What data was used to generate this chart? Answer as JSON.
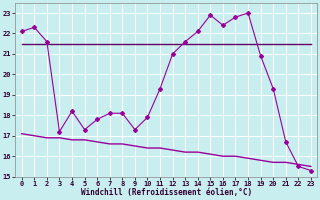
{
  "xlabel": "Windchill (Refroidissement éolien,°C)",
  "background_color": "#c8eef0",
  "line_color": "#990099",
  "line_color2": "#660066",
  "grid_color": "#ffffff",
  "ylim": [
    15,
    23.5
  ],
  "xlim": [
    -0.5,
    23.5
  ],
  "yticks": [
    15,
    16,
    17,
    18,
    19,
    20,
    21,
    22,
    23
  ],
  "xticks": [
    0,
    1,
    2,
    3,
    4,
    5,
    6,
    7,
    8,
    9,
    10,
    11,
    12,
    13,
    14,
    15,
    16,
    17,
    18,
    19,
    20,
    21,
    22,
    23
  ],
  "zigzag_x": [
    0,
    1,
    2,
    3,
    4,
    5,
    6,
    7,
    8,
    9,
    10,
    11,
    12,
    13,
    14,
    15,
    16,
    17,
    18,
    19,
    20,
    21,
    22,
    23
  ],
  "zigzag_y": [
    22.1,
    22.3,
    21.6,
    17.2,
    18.2,
    17.3,
    17.8,
    18.1,
    18.1,
    17.3,
    17.9,
    19.3,
    21.0,
    21.6,
    22.1,
    22.9,
    22.4,
    22.8,
    23.0,
    20.9,
    19.3,
    16.7,
    15.5,
    15.3
  ],
  "upper_flat_x": [
    0,
    1,
    2,
    3,
    4,
    5,
    6,
    7,
    8,
    9,
    10,
    11,
    12,
    13,
    14,
    15,
    16,
    17,
    18,
    19,
    20,
    21,
    22,
    23
  ],
  "upper_flat_y": [
    21.5,
    21.5,
    21.5,
    21.5,
    21.5,
    21.5,
    21.5,
    21.5,
    21.5,
    21.5,
    21.5,
    21.5,
    21.5,
    21.5,
    21.5,
    21.5,
    21.5,
    21.5,
    21.5,
    21.5,
    21.5,
    21.5,
    21.5,
    21.5
  ],
  "lower_slope_x": [
    0,
    1,
    2,
    3,
    4,
    5,
    6,
    7,
    8,
    9,
    10,
    11,
    12,
    13,
    14,
    15,
    16,
    17,
    18,
    19,
    20,
    21,
    22,
    23
  ],
  "lower_slope_y": [
    17.1,
    17.0,
    16.9,
    16.9,
    16.8,
    16.8,
    16.7,
    16.6,
    16.6,
    16.5,
    16.4,
    16.4,
    16.3,
    16.2,
    16.2,
    16.1,
    16.0,
    16.0,
    15.9,
    15.8,
    15.7,
    15.7,
    15.6,
    15.5
  ]
}
